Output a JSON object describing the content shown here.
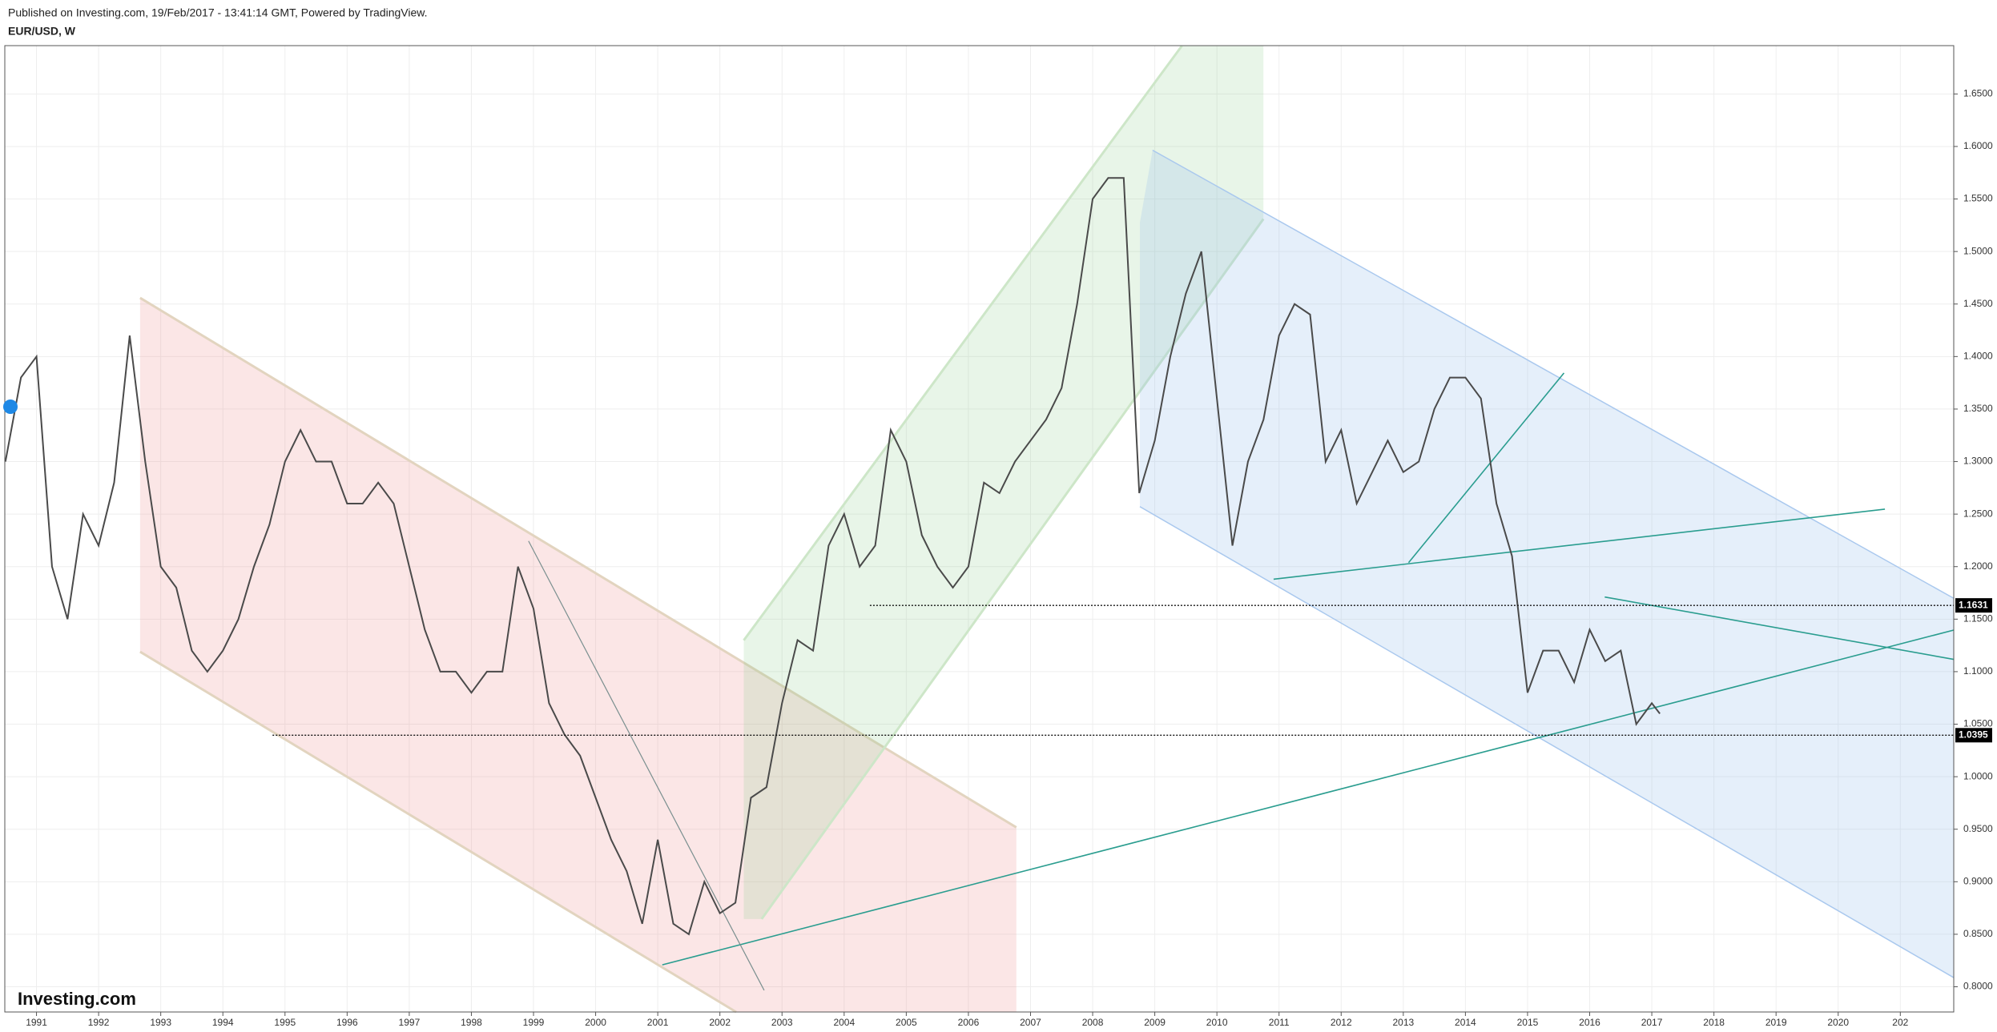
{
  "chart_data": {
    "type": "line",
    "subtitle": "Published on Investing.com, 19/Feb/2017 - 13:41:14 GMT, Powered by TradingView.",
    "title": "EUR/USD, W",
    "logo": "Investing.com",
    "x": [
      1990.5,
      1990.75,
      1991.0,
      1991.25,
      1991.5,
      1991.75,
      1992.0,
      1992.25,
      1992.5,
      1992.75,
      1993.0,
      1993.25,
      1993.5,
      1993.75,
      1994.0,
      1994.25,
      1994.5,
      1994.75,
      1995.0,
      1995.25,
      1995.5,
      1995.75,
      1996.0,
      1996.25,
      1996.5,
      1996.75,
      1997.0,
      1997.25,
      1997.5,
      1997.75,
      1998.0,
      1998.25,
      1998.5,
      1998.75,
      1999.0,
      1999.25,
      1999.5,
      1999.75,
      2000.0,
      2000.25,
      2000.5,
      2000.75,
      2001.0,
      2001.25,
      2001.5,
      2001.75,
      2002.0,
      2002.25,
      2002.5,
      2002.75,
      2003.0,
      2003.25,
      2003.5,
      2003.75,
      2004.0,
      2004.25,
      2004.5,
      2004.75,
      2005.0,
      2005.25,
      2005.5,
      2005.75,
      2006.0,
      2006.25,
      2006.5,
      2006.75,
      2007.0,
      2007.25,
      2007.5,
      2007.75,
      2008.0,
      2008.25,
      2008.5,
      2008.75,
      2009.0,
      2009.25,
      2009.5,
      2009.75,
      2010.0,
      2010.25,
      2010.5,
      2010.75,
      2011.0,
      2011.25,
      2011.5,
      2011.75,
      2012.0,
      2012.25,
      2012.5,
      2012.75,
      2013.0,
      2013.25,
      2013.5,
      2013.75,
      2014.0,
      2014.25,
      2014.5,
      2014.75,
      2015.0,
      2015.25,
      2015.5,
      2015.75,
      2016.0,
      2016.25,
      2016.5,
      2016.75,
      2017.0,
      2017.13
    ],
    "values": [
      1.3,
      1.38,
      1.4,
      1.2,
      1.15,
      1.25,
      1.22,
      1.28,
      1.42,
      1.3,
      1.2,
      1.18,
      1.12,
      1.1,
      1.12,
      1.15,
      1.2,
      1.24,
      1.3,
      1.33,
      1.3,
      1.3,
      1.26,
      1.26,
      1.28,
      1.26,
      1.2,
      1.14,
      1.1,
      1.1,
      1.08,
      1.1,
      1.1,
      1.2,
      1.16,
      1.07,
      1.04,
      1.02,
      0.98,
      0.94,
      0.91,
      0.86,
      0.94,
      0.86,
      0.85,
      0.9,
      0.87,
      0.88,
      0.98,
      0.99,
      1.07,
      1.13,
      1.12,
      1.22,
      1.25,
      1.2,
      1.22,
      1.33,
      1.3,
      1.23,
      1.2,
      1.18,
      1.2,
      1.28,
      1.27,
      1.3,
      1.32,
      1.34,
      1.37,
      1.45,
      1.55,
      1.57,
      1.57,
      1.27,
      1.32,
      1.4,
      1.46,
      1.5,
      1.36,
      1.22,
      1.3,
      1.34,
      1.42,
      1.45,
      1.44,
      1.3,
      1.33,
      1.26,
      1.29,
      1.32,
      1.29,
      1.3,
      1.35,
      1.38,
      1.38,
      1.36,
      1.26,
      1.21,
      1.08,
      1.12,
      1.12,
      1.09,
      1.14,
      1.11,
      1.12,
      1.05,
      1.07,
      1.06
    ],
    "color": "#4a4a4a",
    "xlim": [
      1990.49,
      2021.86
    ],
    "xticks": [
      1991,
      1992,
      1993,
      1994,
      1995,
      1996,
      1997,
      1998,
      1999,
      2000,
      2001,
      2002,
      2003,
      2004,
      2005,
      2006,
      2007,
      2008,
      2009,
      2010,
      2011,
      2012,
      2013,
      2014,
      2015,
      2016,
      2017,
      2018,
      2019,
      2020,
      {
        "value": 2021,
        "label": "202"
      }
    ],
    "ylim": [
      0.776,
      1.696
    ],
    "yticks": [
      {
        "value": 0.8,
        "label": "0.8000"
      },
      {
        "value": 0.85,
        "label": "0.8500"
      },
      {
        "value": 0.9,
        "label": "0.9000"
      },
      {
        "value": 0.95,
        "label": "0.9500"
      },
      {
        "value": 1.0,
        "label": "1.0000"
      },
      {
        "value": 1.05,
        "label": "1.0500"
      },
      {
        "value": 1.1,
        "label": "1.1000"
      },
      {
        "value": 1.15,
        "label": "1.1500"
      },
      {
        "value": 1.2,
        "label": "1.2000"
      },
      {
        "value": 1.25,
        "label": "1.2500"
      },
      {
        "value": 1.3,
        "label": "1.3000"
      },
      {
        "value": 1.35,
        "label": "1.3500"
      },
      {
        "value": 1.4,
        "label": "1.4000"
      },
      {
        "value": 1.45,
        "label": "1.4500"
      },
      {
        "value": 1.5,
        "label": "1.5000"
      },
      {
        "value": 1.55,
        "label": "1.5500"
      },
      {
        "value": 1.6,
        "label": "1.6000"
      },
      {
        "value": 1.65,
        "label": "1.6500"
      }
    ],
    "horizontal_lines": [
      1.1631,
      1.0395
    ],
    "grid": true
  }
}
